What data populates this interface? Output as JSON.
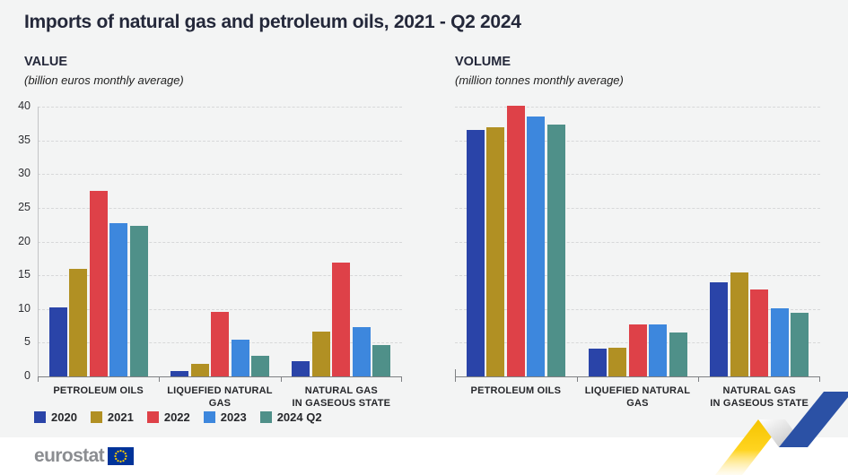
{
  "title": "Imports of natural gas and petroleum oils, 2021 - Q2 2024",
  "panels": [
    {
      "heading": "VALUE",
      "subtitle": "(billion euros monthly average)"
    },
    {
      "heading": "VOLUME",
      "subtitle": "(million tonnes monthly average)"
    }
  ],
  "legend": {
    "items": [
      {
        "label": "2020",
        "color": "#2a44a8"
      },
      {
        "label": "2021",
        "color": "#b19023"
      },
      {
        "label": "2022",
        "color": "#de4148"
      },
      {
        "label": "2023",
        "color": "#3d87dd"
      },
      {
        "label": "2024 Q2",
        "color": "#4f9089"
      }
    ]
  },
  "footer": {
    "logo_text": "eurostat"
  },
  "colors": {
    "background": "#f3f4f4",
    "eu_flag_blue": "#003399",
    "eu_star_yellow": "#ffcc00",
    "ribbon_yellow": "#f8c700",
    "ribbon_blue": "#2b51a5",
    "axis": "#7e8083"
  },
  "chart_data": [
    {
      "type": "bar",
      "title": "VALUE",
      "subtitle": "(billion euros monthly average)",
      "categories": [
        "PETROLEUM OILS",
        "LIQUEFIED NATURAL GAS",
        "NATURAL GAS IN GASEOUS STATE"
      ],
      "category_lines": [
        [
          "PETROLEUM OILS"
        ],
        [
          "LIQUEFIED NATURAL GAS"
        ],
        [
          "NATURAL GAS",
          "IN GASEOUS STATE"
        ]
      ],
      "series": [
        {
          "name": "2020",
          "color": "#2a44a8",
          "values": [
            10.2,
            0.8,
            2.2
          ]
        },
        {
          "name": "2021",
          "color": "#b19023",
          "values": [
            16.0,
            1.9,
            6.6
          ]
        },
        {
          "name": "2022",
          "color": "#de4148",
          "values": [
            27.5,
            9.6,
            16.9
          ]
        },
        {
          "name": "2023",
          "color": "#3d87dd",
          "values": [
            22.7,
            5.4,
            7.3
          ]
        },
        {
          "name": "2024 Q2",
          "color": "#4f9089",
          "values": [
            22.3,
            3.0,
            4.6
          ]
        }
      ],
      "ylim": [
        0,
        40
      ],
      "ytick_step": 5,
      "grid": "horizontal-dashed",
      "show_y_labels": true,
      "legend_position": "bottom-left"
    },
    {
      "type": "bar",
      "title": "VOLUME",
      "subtitle": "(million tonnes monthly average)",
      "categories": [
        "PETROLEUM OILS",
        "LIQUEFIED NATURAL GAS",
        "NATURAL GAS IN GASEOUS STATE"
      ],
      "category_lines": [
        [
          "PETROLEUM OILS"
        ],
        [
          "LIQUEFIED NATURAL GAS"
        ],
        [
          "NATURAL GAS",
          "IN GASEOUS STATE"
        ]
      ],
      "series": [
        {
          "name": "2020",
          "color": "#2a44a8",
          "values": [
            36.6,
            4.1,
            14.0
          ]
        },
        {
          "name": "2021",
          "color": "#b19023",
          "values": [
            36.9,
            4.3,
            15.4
          ]
        },
        {
          "name": "2022",
          "color": "#de4148",
          "values": [
            40.1,
            7.7,
            12.9
          ]
        },
        {
          "name": "2023",
          "color": "#3d87dd",
          "values": [
            38.6,
            7.7,
            10.1
          ]
        },
        {
          "name": "2024 Q2",
          "color": "#4f9089",
          "values": [
            37.3,
            6.5,
            9.4
          ]
        }
      ],
      "ylim": [
        0,
        40
      ],
      "ytick_step": 5,
      "grid": "horizontal-dashed",
      "show_y_labels": false,
      "legend_position": "shared"
    }
  ]
}
